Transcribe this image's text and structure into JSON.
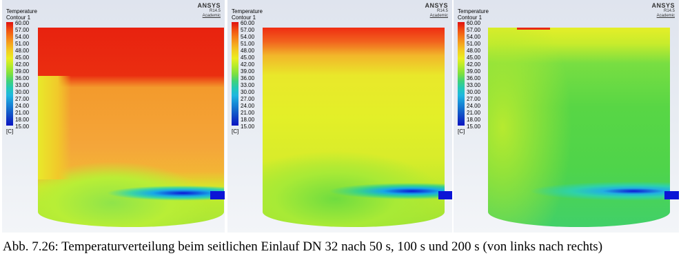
{
  "legend": {
    "title_line1": "Temperature",
    "title_line2": "Contour 1",
    "ticks": [
      "60.00",
      "57.00",
      "54.00",
      "51.00",
      "48.00",
      "45.00",
      "42.00",
      "39.00",
      "36.00",
      "33.00",
      "30.00",
      "27.00",
      "24.00",
      "21.00",
      "18.00",
      "15.00"
    ],
    "unit": "[C]"
  },
  "branding": {
    "name": "ANSYS",
    "version": "R14.5",
    "edition": "Academic"
  },
  "panels": [
    {
      "time_s": 50
    },
    {
      "time_s": 100
    },
    {
      "time_s": 200
    }
  ],
  "caption": "Abb. 7.26: Temperaturverteilung beim seitlichen Einlauf DN 32 nach 50 s, 100 s und 200 s (von links nach rechts)"
}
